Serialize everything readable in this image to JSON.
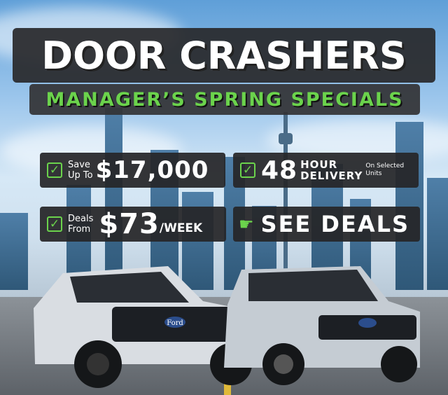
{
  "banner": {
    "title": "DOOR CRASHERS",
    "subtitle": "MANAGER’S SPRING SPECIALS",
    "accent_color": "#6bd34c",
    "cards": [
      {
        "icon": "checkbox-icon",
        "line1": "Save",
        "line2": "Up To",
        "value": "$17,000"
      },
      {
        "icon": "checkbox-icon",
        "value": "48",
        "line1": "HOUR",
        "line2": "DELIVERY",
        "note1": "On Selected",
        "note2": "Units"
      },
      {
        "icon": "checkbox-icon",
        "line1": "Deals",
        "line2": "From",
        "value": "$73",
        "unit": "/WEEK"
      },
      {
        "icon": "tap-hand-icon",
        "label": "SEE DEALS"
      }
    ],
    "vehicle_logo": "Ford"
  }
}
